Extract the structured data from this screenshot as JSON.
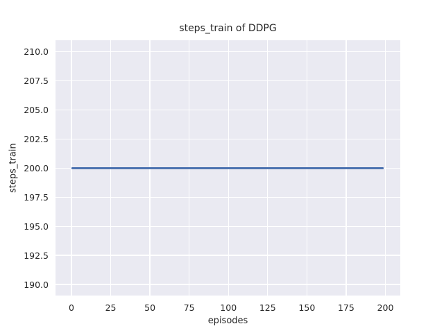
{
  "chart_data": {
    "type": "line",
    "title": "steps_train of DDPG",
    "xlabel": "episodes",
    "ylabel": "steps_train",
    "xlim": [
      -10.15,
      209.5
    ],
    "ylim": [
      189.05,
      211.0
    ],
    "grid": true,
    "legend": "none",
    "xticks": {
      "values": [
        0,
        25,
        50,
        75,
        100,
        125,
        150,
        175,
        200
      ],
      "labels": [
        "0",
        "25",
        "50",
        "75",
        "100",
        "125",
        "150",
        "175",
        "200"
      ]
    },
    "yticks": {
      "values": [
        190.0,
        192.5,
        195.0,
        197.5,
        200.0,
        202.5,
        205.0,
        207.5,
        210.0
      ],
      "labels": [
        "190.0",
        "192.5",
        "195.0",
        "197.5",
        "200.0",
        "202.5",
        "205.0",
        "207.5",
        "210.0"
      ]
    },
    "series": [
      {
        "name": "steps_train",
        "constant_value": 200,
        "x": [
          0,
          199
        ],
        "y": [
          200,
          200
        ],
        "color": "#4C72B0"
      }
    ],
    "colors": {
      "figure_background": "#FFFFFF",
      "plot_background": "#EAEAF2",
      "gridline": "#FFFFFF",
      "text": "#262626",
      "line": "#4C72B0"
    }
  }
}
